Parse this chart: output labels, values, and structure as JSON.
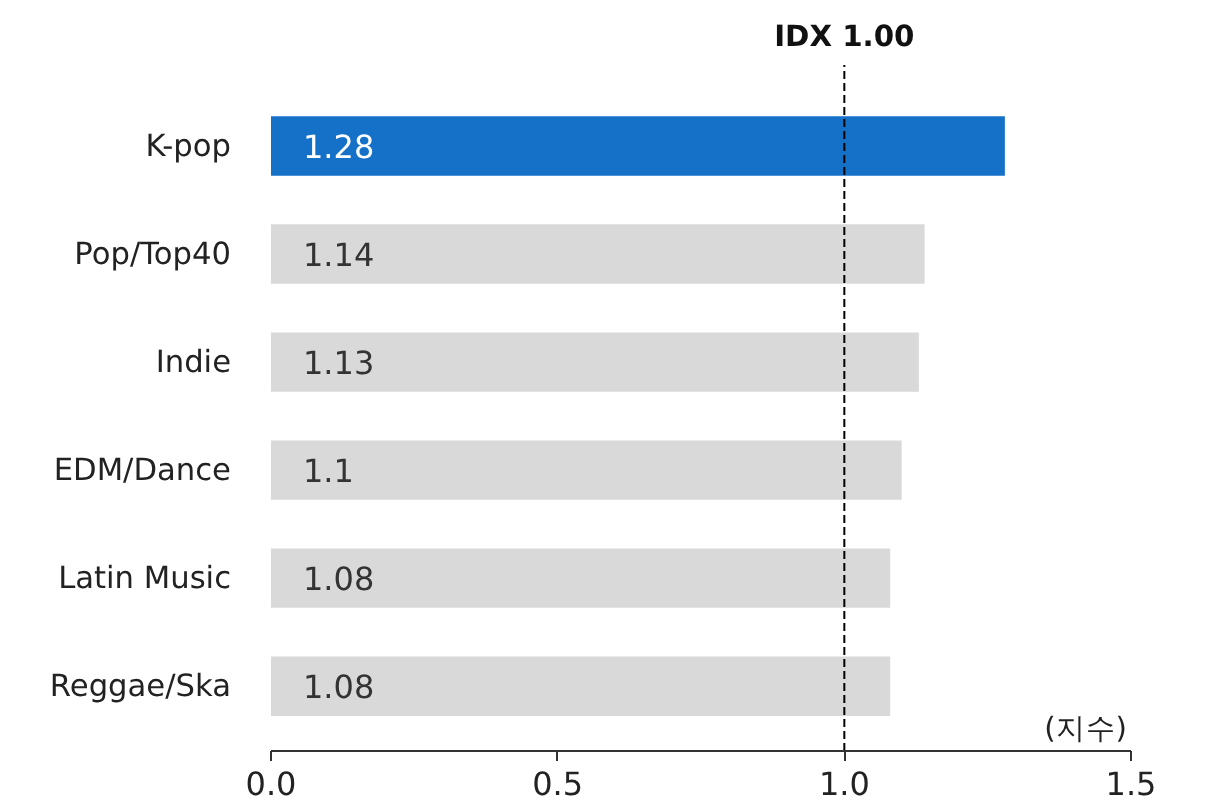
{
  "chart_data": {
    "type": "bar",
    "orientation": "horizontal",
    "categories": [
      "K-pop",
      "Pop/Top40",
      "Indie",
      "EDM/Dance",
      "Latin Music",
      "Reggae/Ska"
    ],
    "values": [
      1.28,
      1.14,
      1.13,
      1.1,
      1.08,
      1.08
    ],
    "colors": [
      "#1570c8",
      "#d9d9d9",
      "#d9d9d9",
      "#d9d9d9",
      "#d9d9d9",
      "#d9d9d9"
    ],
    "xlim": [
      0,
      1.5
    ],
    "xticks": [
      {
        "value": 0,
        "label": "0.0"
      },
      {
        "value": 0.5,
        "label": "0.5"
      },
      {
        "value": 1,
        "label": "1.0"
      },
      {
        "value": 1.5,
        "label": "1.5"
      }
    ],
    "xlabel": "(지수)",
    "data_labels": true,
    "grid": false,
    "ref_lines": [
      {
        "axis": "x",
        "value": 1,
        "label": "IDX 1.00",
        "line_style": "dashed",
        "color": "#000000"
      }
    ]
  }
}
